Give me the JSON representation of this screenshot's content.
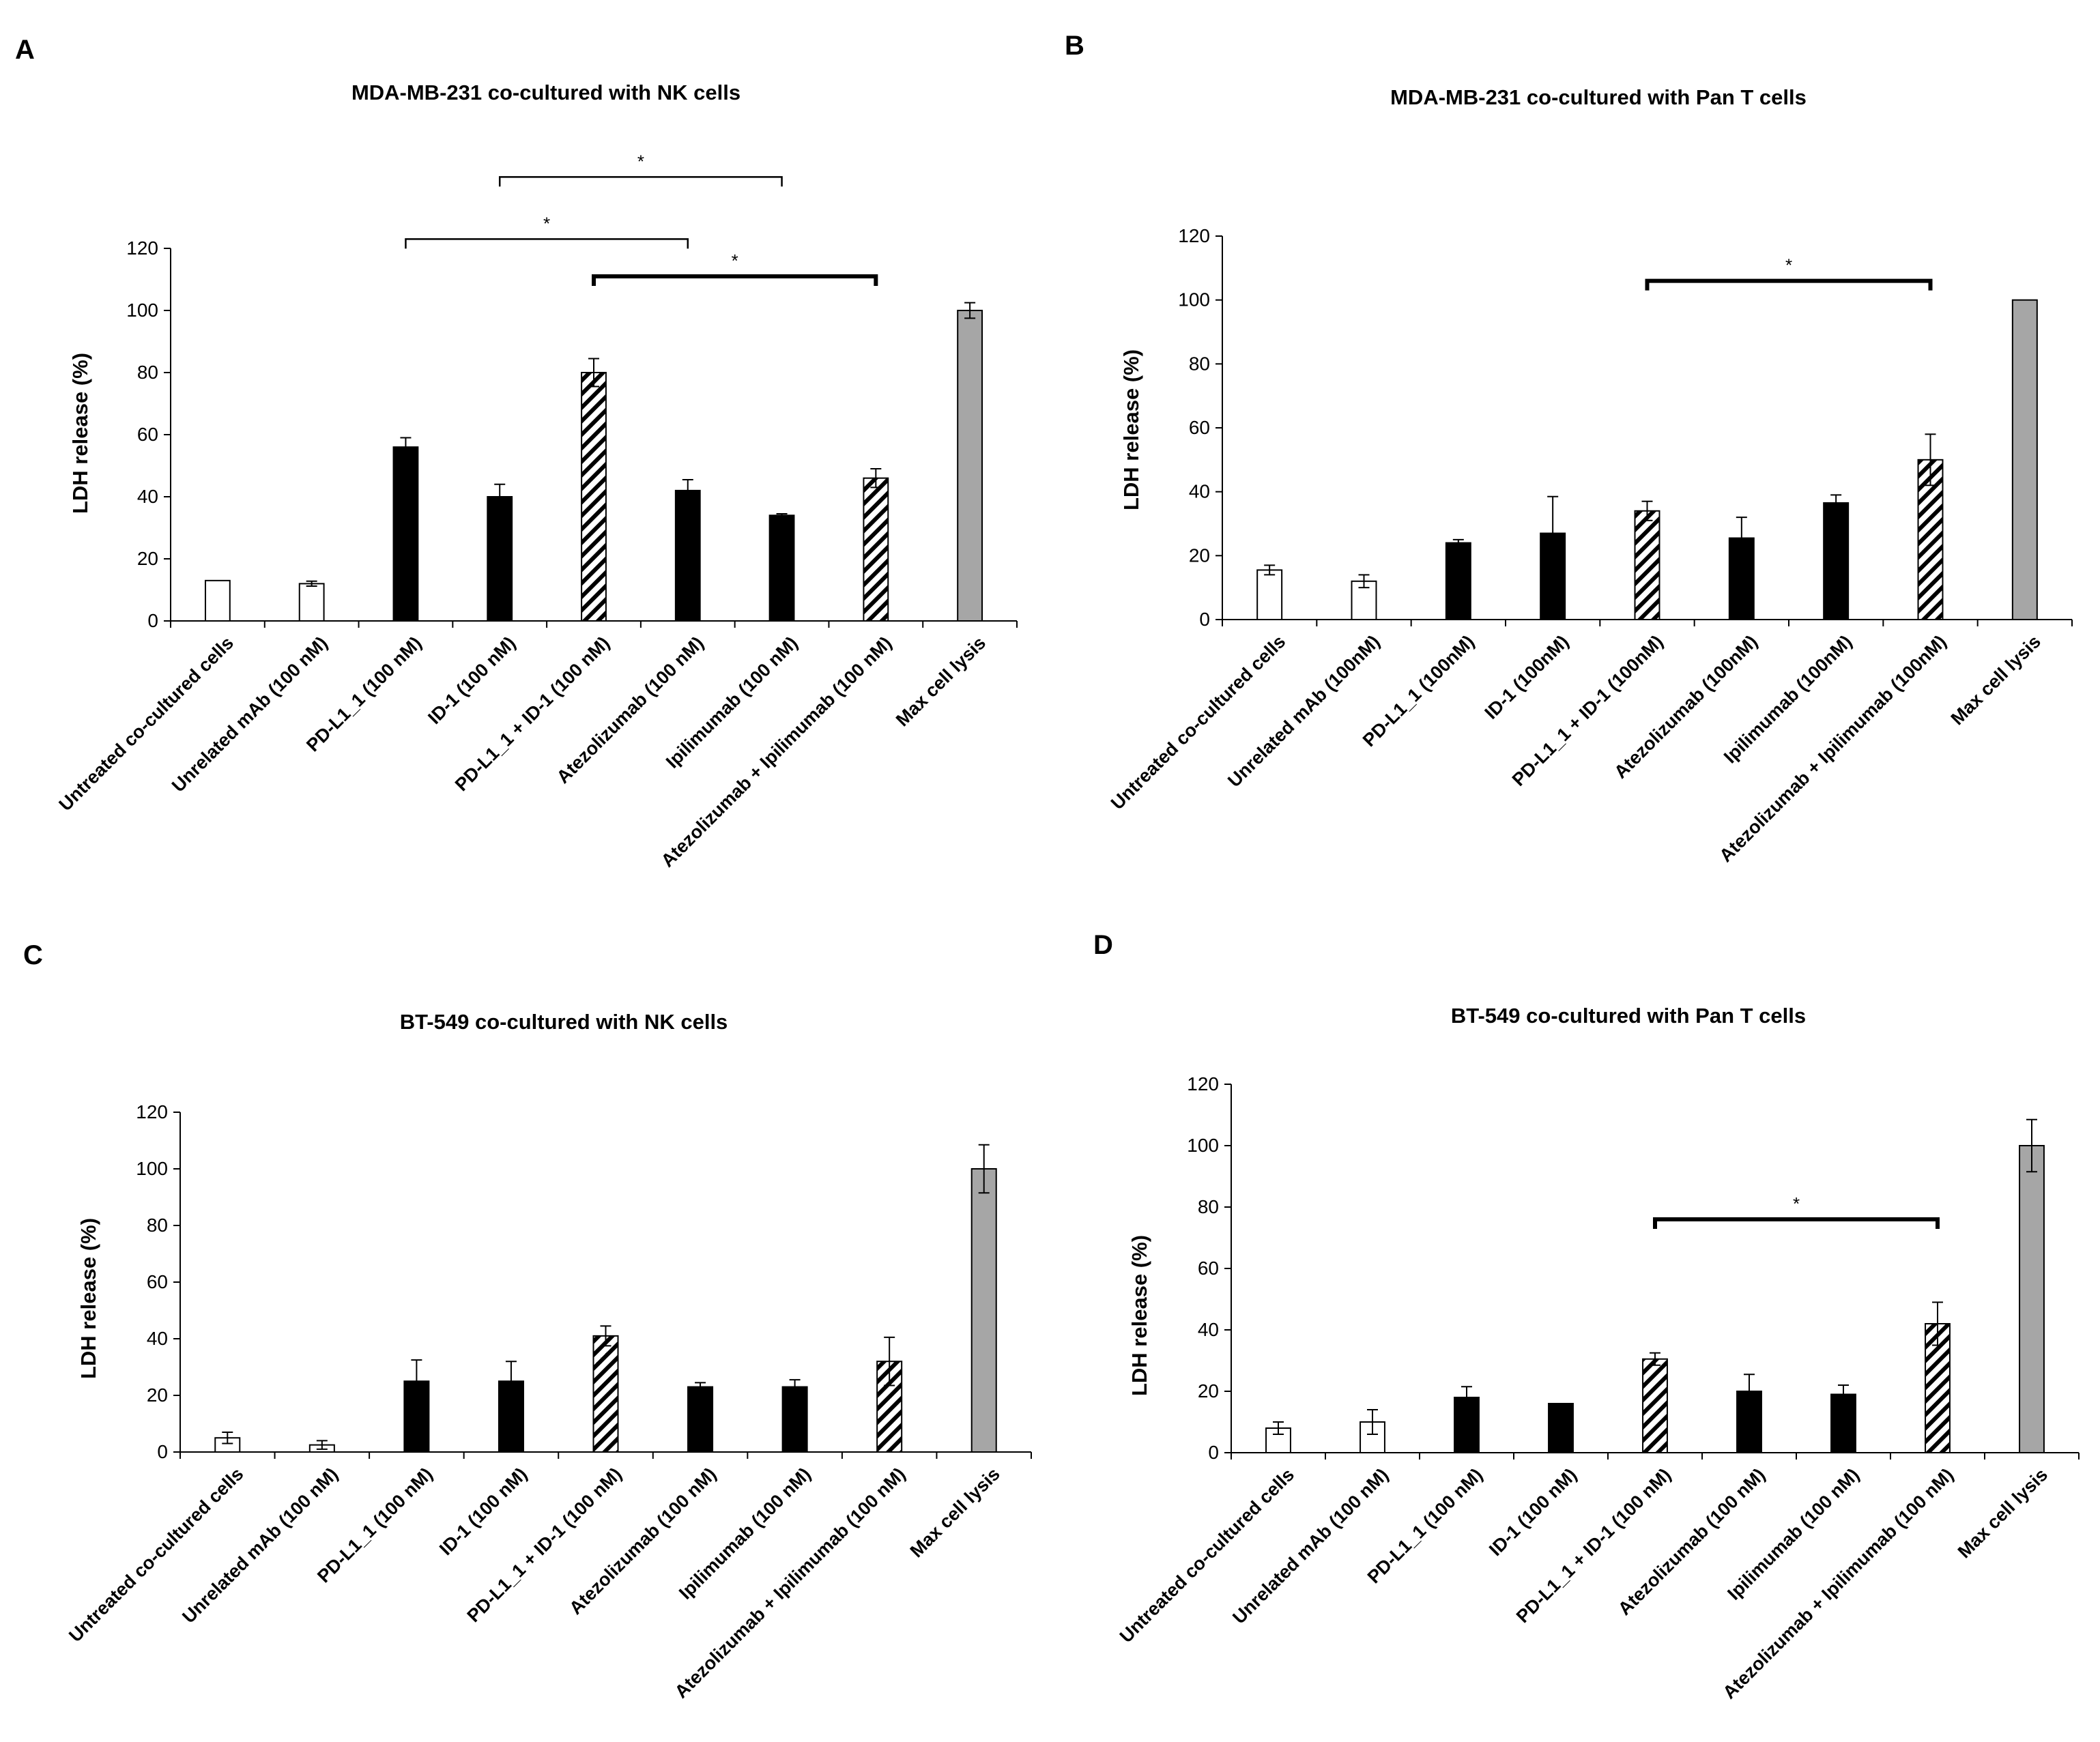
{
  "figure": {
    "panels": [
      "A",
      "B",
      "C",
      "D"
    ]
  },
  "chart_data": [
    {
      "panel": "A",
      "type": "bar",
      "title": "MDA-MB-231 co-cultured with NK cells",
      "xlabel": "",
      "ylabel": "LDH release (%)",
      "ylim": [
        0,
        120
      ],
      "yticks": [
        0,
        20,
        40,
        60,
        80,
        100,
        120
      ],
      "categories": [
        "Untreated co-cultured cells",
        "Unrelated mAb (100 nM)",
        "PD-L1_1 (100 nM)",
        "ID-1 (100 nM)",
        "PD-L1_1 + ID-1 (100 nM)",
        "Atezolizumab (100 nM)",
        "Ipilimumab (100 nM)",
        "Atezolizumab + Ipilimumab (100 nM)",
        "Max cell lysis"
      ],
      "values": [
        13,
        12,
        56,
        40,
        80,
        42,
        34,
        46,
        100
      ],
      "errors": [
        0,
        0.8,
        3,
        4,
        4.5,
        3.5,
        0.5,
        3,
        2.5
      ],
      "fills": [
        "white",
        "white",
        "black",
        "black",
        "hatched",
        "black",
        "black",
        "hatched",
        "gray"
      ],
      "significance": [
        {
          "from": 3,
          "to": 6,
          "label": "*",
          "level": 143,
          "bold": false
        },
        {
          "from": 2,
          "to": 5,
          "label": "*",
          "level": 123,
          "bold": false
        },
        {
          "from": 4,
          "to": 7,
          "label": "*",
          "level": 111,
          "bold": true
        }
      ]
    },
    {
      "panel": "B",
      "type": "bar",
      "title": "MDA-MB-231 co-cultured with Pan T cells",
      "xlabel": "",
      "ylabel": "LDH release (%)",
      "ylim": [
        0,
        120
      ],
      "yticks": [
        0,
        20,
        40,
        60,
        80,
        100,
        120
      ],
      "categories": [
        "Untreated co-cultured cells",
        "Unrelated mAb (100nM)",
        "PD-L1_1 (100nM)",
        "ID-1 (100nM)",
        "PD-L1_1 + ID-1 (100nM)",
        "Atezolizumab (100nM)",
        "Ipilimumab (100nM)",
        "Atezolizumab + Ipilimumab (100nM)",
        "Max cell lysis"
      ],
      "values": [
        15.5,
        12,
        24,
        27,
        34,
        25.5,
        36.5,
        50,
        100
      ],
      "errors": [
        1.5,
        2,
        1,
        11.5,
        3,
        6.5,
        2.5,
        8,
        0
      ],
      "fills": [
        "white",
        "white",
        "black",
        "black",
        "hatched",
        "black",
        "black",
        "hatched",
        "gray"
      ],
      "significance": [
        {
          "from": 4,
          "to": 7,
          "label": "*",
          "level": 106,
          "bold": true
        }
      ]
    },
    {
      "panel": "C",
      "type": "bar",
      "title": "BT-549 co-cultured with NK cells",
      "xlabel": "",
      "ylabel": "LDH release (%)",
      "ylim": [
        0,
        120
      ],
      "yticks": [
        0,
        20,
        40,
        60,
        80,
        100,
        120
      ],
      "categories": [
        "Untreated co-cultured cells",
        "Unrelated mAb (100 nM)",
        "PD-L1_1 (100 nM)",
        "ID-1 (100 nM)",
        "PD-L1_1 + ID-1 (100 nM)",
        "Atezolizumab (100 nM)",
        "Ipilimumab (100 nM)",
        "Atezolizumab + Ipilimumab (100 nM)",
        "Max cell lysis"
      ],
      "values": [
        5,
        2.5,
        25,
        25,
        41,
        23,
        23,
        32,
        100
      ],
      "errors": [
        2,
        1.5,
        7.5,
        7,
        3.5,
        1.5,
        2.5,
        8.5,
        8.5
      ],
      "fills": [
        "white",
        "white",
        "black",
        "black",
        "hatched",
        "black",
        "black",
        "hatched",
        "gray"
      ],
      "significance": []
    },
    {
      "panel": "D",
      "type": "bar",
      "title": "BT-549 co-cultured with Pan T cells",
      "xlabel": "",
      "ylabel": "LDH release (%)",
      "ylim": [
        0,
        120
      ],
      "yticks": [
        0,
        20,
        40,
        60,
        80,
        100,
        120
      ],
      "categories": [
        "Untreated co-cultured cells",
        "Unrelated mAb (100 nM)",
        "PD-L1_1 (100 nM)",
        "ID-1 (100 nM)",
        "PD-L1_1 + ID-1 (100 nM)",
        "Atezolizumab (100 nM)",
        "Ipilimumab (100 nM)",
        "Atezolizumab + Ipilimumab (100 nM)",
        "Max cell lysis"
      ],
      "values": [
        8,
        10,
        18,
        16,
        30.5,
        20,
        19,
        42,
        100
      ],
      "errors": [
        2,
        4,
        3.5,
        0,
        2,
        5.5,
        3,
        7,
        8.5
      ],
      "fills": [
        "white",
        "white",
        "black",
        "black",
        "hatched",
        "black",
        "black",
        "hatched",
        "gray"
      ],
      "significance": [
        {
          "from": 4,
          "to": 7,
          "label": "*",
          "level": 76,
          "bold": true
        }
      ]
    }
  ]
}
